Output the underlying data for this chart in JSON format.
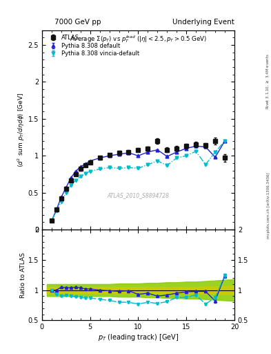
{
  "title_left": "7000 GeV pp",
  "title_right": "Underlying Event",
  "plot_title": "Average $\\Sigma(p_T)$ vs $p_T^{lead}$ ($|\\eta| < 2.5, p_T > 0.5$ GeV)",
  "xlabel": "$p_T$ (leading track) [GeV]",
  "ylabel_main": "$\\langle d^2$ sum $p_T/d\\eta d\\phi\\rangle$ [GeV]",
  "ylabel_ratio": "Ratio to ATLAS",
  "watermark": "ATLAS_2010_S8894728",
  "right_label": "mcplots.cern.ch [arXiv:1306.3436]",
  "right_label2": "Rivet 3.1.10, $\\geq$ 3.4M events",
  "xlim": [
    0,
    20
  ],
  "ylim_main": [
    0,
    2.7
  ],
  "ylim_ratio": [
    0.5,
    2.0
  ],
  "atlas_x": [
    1.0,
    1.5,
    2.0,
    2.5,
    3.0,
    3.5,
    4.0,
    4.5,
    5.0,
    6.0,
    7.0,
    8.0,
    9.0,
    10.0,
    11.0,
    12.0,
    13.0,
    14.0,
    15.0,
    16.0,
    17.0,
    18.0,
    19.0
  ],
  "atlas_y": [
    0.12,
    0.27,
    0.42,
    0.55,
    0.67,
    0.75,
    0.82,
    0.87,
    0.91,
    0.97,
    1.01,
    1.04,
    1.05,
    1.08,
    1.1,
    1.2,
    1.08,
    1.1,
    1.13,
    1.15,
    1.14,
    1.2,
    0.97
  ],
  "atlas_yerr": [
    0.015,
    0.015,
    0.02,
    0.02,
    0.02,
    0.02,
    0.02,
    0.02,
    0.02,
    0.025,
    0.025,
    0.025,
    0.025,
    0.025,
    0.025,
    0.035,
    0.035,
    0.035,
    0.035,
    0.035,
    0.035,
    0.05,
    0.05
  ],
  "pythia_default_x": [
    1.0,
    1.5,
    2.0,
    2.5,
    3.0,
    3.5,
    4.0,
    4.5,
    5.0,
    6.0,
    7.0,
    8.0,
    9.0,
    10.0,
    11.0,
    12.0,
    13.0,
    14.0,
    15.0,
    16.0,
    17.0,
    18.0,
    19.0
  ],
  "pythia_default_y": [
    0.12,
    0.27,
    0.44,
    0.57,
    0.7,
    0.79,
    0.85,
    0.89,
    0.93,
    0.97,
    1.0,
    1.02,
    1.04,
    1.0,
    1.05,
    1.08,
    0.99,
    1.05,
    1.1,
    1.13,
    1.12,
    0.98,
    1.2
  ],
  "pythia_default_yerr": [
    0.004,
    0.004,
    0.004,
    0.004,
    0.004,
    0.004,
    0.004,
    0.004,
    0.004,
    0.004,
    0.004,
    0.004,
    0.004,
    0.004,
    0.004,
    0.006,
    0.006,
    0.006,
    0.006,
    0.006,
    0.006,
    0.008,
    0.008
  ],
  "pythia_vincia_x": [
    1.0,
    1.5,
    2.0,
    2.5,
    3.0,
    3.5,
    4.0,
    4.5,
    5.0,
    6.0,
    7.0,
    8.0,
    9.0,
    10.0,
    11.0,
    12.0,
    13.0,
    14.0,
    15.0,
    16.0,
    17.0,
    18.0,
    19.0
  ],
  "pythia_vincia_y": [
    0.12,
    0.25,
    0.38,
    0.5,
    0.6,
    0.67,
    0.72,
    0.76,
    0.79,
    0.82,
    0.84,
    0.83,
    0.84,
    0.83,
    0.88,
    0.93,
    0.87,
    0.97,
    1.0,
    1.06,
    0.88,
    1.05,
    1.2
  ],
  "pythia_vincia_yerr": [
    0.004,
    0.004,
    0.004,
    0.004,
    0.004,
    0.004,
    0.004,
    0.004,
    0.004,
    0.004,
    0.004,
    0.004,
    0.004,
    0.004,
    0.004,
    0.006,
    0.006,
    0.006,
    0.006,
    0.006,
    0.006,
    0.008,
    0.008
  ],
  "ratio_default_y": [
    1.0,
    1.0,
    1.05,
    1.04,
    1.04,
    1.05,
    1.04,
    1.02,
    1.02,
    1.0,
    0.99,
    0.98,
    0.99,
    0.93,
    0.95,
    0.9,
    0.92,
    0.95,
    0.97,
    0.98,
    0.98,
    0.82,
    1.24
  ],
  "ratio_vincia_y": [
    1.0,
    0.93,
    0.9,
    0.91,
    0.9,
    0.89,
    0.88,
    0.87,
    0.87,
    0.85,
    0.83,
    0.8,
    0.8,
    0.77,
    0.8,
    0.78,
    0.81,
    0.88,
    0.88,
    0.92,
    0.77,
    0.875,
    1.24
  ],
  "ratio_default_yerr": [
    0.008,
    0.008,
    0.008,
    0.008,
    0.008,
    0.008,
    0.008,
    0.008,
    0.008,
    0.008,
    0.008,
    0.008,
    0.008,
    0.01,
    0.01,
    0.012,
    0.012,
    0.012,
    0.015,
    0.015,
    0.015,
    0.025,
    0.035
  ],
  "ratio_vincia_yerr": [
    0.008,
    0.008,
    0.008,
    0.008,
    0.008,
    0.008,
    0.008,
    0.008,
    0.008,
    0.008,
    0.008,
    0.008,
    0.008,
    0.01,
    0.01,
    0.012,
    0.012,
    0.012,
    0.015,
    0.015,
    0.015,
    0.025,
    0.035
  ],
  "band_x": [
    0.5,
    1.0,
    1.5,
    2.0,
    2.5,
    3.0,
    3.5,
    4.0,
    4.5,
    5.0,
    6.0,
    7.0,
    8.0,
    9.0,
    10.0,
    11.0,
    12.0,
    13.0,
    14.0,
    15.0,
    16.0,
    17.0,
    18.0,
    19.0,
    20.0
  ],
  "band_outer_lo": [
    0.9,
    0.9,
    0.9,
    0.9,
    0.9,
    0.9,
    0.9,
    0.9,
    0.9,
    0.9,
    0.9,
    0.9,
    0.89,
    0.89,
    0.89,
    0.88,
    0.88,
    0.87,
    0.87,
    0.86,
    0.86,
    0.85,
    0.84,
    0.83,
    0.82
  ],
  "band_outer_hi": [
    1.1,
    1.1,
    1.1,
    1.1,
    1.1,
    1.1,
    1.1,
    1.1,
    1.1,
    1.1,
    1.1,
    1.1,
    1.11,
    1.11,
    1.11,
    1.12,
    1.12,
    1.13,
    1.13,
    1.14,
    1.14,
    1.15,
    1.16,
    1.17,
    1.18
  ],
  "band_inner_lo": [
    0.95,
    0.95,
    0.95,
    0.95,
    0.95,
    0.95,
    0.95,
    0.95,
    0.95,
    0.95,
    0.95,
    0.95,
    0.95,
    0.95,
    0.95,
    0.95,
    0.95,
    0.95,
    0.95,
    0.95,
    0.95,
    0.94,
    0.94,
    0.93,
    0.93
  ],
  "band_inner_hi": [
    1.05,
    1.05,
    1.05,
    1.05,
    1.05,
    1.05,
    1.05,
    1.05,
    1.05,
    1.05,
    1.05,
    1.05,
    1.05,
    1.05,
    1.05,
    1.05,
    1.05,
    1.05,
    1.05,
    1.05,
    1.05,
    1.06,
    1.06,
    1.07,
    1.07
  ],
  "color_atlas": "#111111",
  "color_default": "#2222cc",
  "color_vincia": "#00bbcc",
  "band_yellow": "#cccc00",
  "band_green": "#88cc00",
  "bg_color": "#ffffff"
}
